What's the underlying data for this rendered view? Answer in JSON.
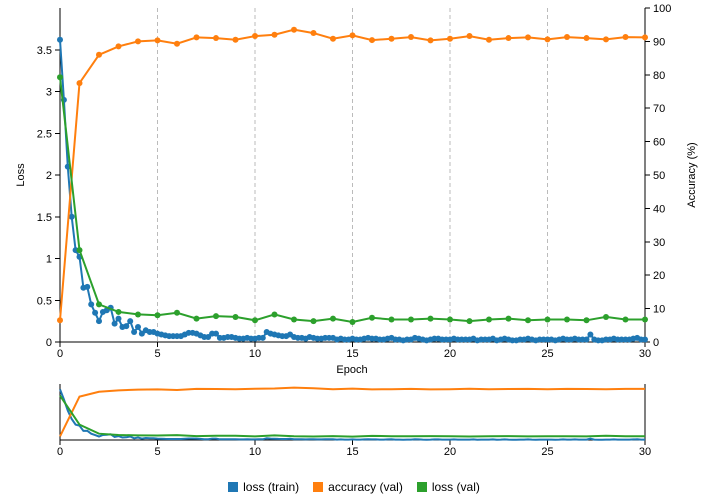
{
  "chart_data": {
    "type": "line",
    "xlabel": "Epoch",
    "ylabel": "Loss",
    "y2label": "Accuracy (%)",
    "xlim": [
      0,
      30
    ],
    "ylim": [
      0,
      4
    ],
    "y2lim": [
      0,
      100
    ],
    "x_ticks": [
      0,
      5,
      10,
      15,
      20,
      25,
      30
    ],
    "y_ticks": [
      0,
      0.5,
      1,
      1.5,
      2,
      2.5,
      3,
      3.5
    ],
    "y2_ticks": [
      0,
      10,
      20,
      30,
      40,
      50,
      60,
      70,
      80,
      90,
      100
    ],
    "vertical_grid": [
      5,
      10,
      15,
      20,
      25,
      30
    ],
    "legend_position": "bottom-center",
    "series": [
      {
        "name": "loss (train)",
        "color": "#1f77b4",
        "axis": "left",
        "x": [
          0,
          0.2,
          0.4,
          0.6,
          0.8,
          1,
          1.2,
          1.4,
          1.6,
          1.8,
          2,
          2.2,
          2.4,
          2.6,
          2.8,
          3,
          3.2,
          3.4,
          3.6,
          3.8,
          4,
          4.2,
          4.4,
          4.6,
          4.8,
          5,
          5.2,
          5.4,
          5.6,
          5.8,
          6,
          6.2,
          6.4,
          6.6,
          6.8,
          7,
          7.2,
          7.4,
          7.6,
          7.8,
          8,
          8.2,
          8.4,
          8.6,
          8.8,
          9,
          9.2,
          9.4,
          9.6,
          9.8,
          10,
          10.2,
          10.4,
          10.6,
          10.8,
          11,
          11.2,
          11.4,
          11.6,
          11.8,
          12,
          12.2,
          12.4,
          12.6,
          12.8,
          13,
          13.2,
          13.4,
          13.6,
          13.8,
          14,
          14.2,
          14.4,
          14.6,
          14.8,
          15,
          15.2,
          15.4,
          15.6,
          15.8,
          16,
          16.2,
          16.4,
          16.6,
          16.8,
          17,
          17.2,
          17.4,
          17.6,
          17.8,
          18,
          18.2,
          18.4,
          18.6,
          18.8,
          19,
          19.2,
          19.4,
          19.6,
          19.8,
          20,
          20.2,
          20.4,
          20.6,
          20.8,
          21,
          21.2,
          21.4,
          21.6,
          21.8,
          22,
          22.2,
          22.4,
          22.6,
          22.8,
          23,
          23.2,
          23.4,
          23.6,
          23.8,
          24,
          24.2,
          24.4,
          24.6,
          24.8,
          25,
          25.2,
          25.4,
          25.6,
          25.8,
          26,
          26.2,
          26.4,
          26.6,
          26.8,
          27,
          27.2,
          27.4,
          27.6,
          27.8,
          28,
          28.2,
          28.4,
          28.6,
          28.8,
          29,
          29.2,
          29.4,
          29.6,
          29.8,
          30
        ],
        "values": [
          3.62,
          2.9,
          2.1,
          1.5,
          1.1,
          1.02,
          0.65,
          0.66,
          0.45,
          0.35,
          0.25,
          0.36,
          0.38,
          0.41,
          0.22,
          0.28,
          0.18,
          0.19,
          0.25,
          0.12,
          0.18,
          0.1,
          0.14,
          0.12,
          0.12,
          0.1,
          0.09,
          0.08,
          0.07,
          0.07,
          0.07,
          0.07,
          0.09,
          0.11,
          0.11,
          0.1,
          0.08,
          0.06,
          0.06,
          0.1,
          0.1,
          0.05,
          0.05,
          0.06,
          0.06,
          0.05,
          0.04,
          0.04,
          0.05,
          0.04,
          0.04,
          0.05,
          0.05,
          0.12,
          0.1,
          0.09,
          0.08,
          0.07,
          0.07,
          0.09,
          0.06,
          0.05,
          0.05,
          0.04,
          0.06,
          0.05,
          0.04,
          0.04,
          0.05,
          0.05,
          0.05,
          0.03,
          0.04,
          0.03,
          0.03,
          0.04,
          0.03,
          0.03,
          0.04,
          0.05,
          0.04,
          0.04,
          0.03,
          0.03,
          0.04,
          0.05,
          0.03,
          0.03,
          0.02,
          0.03,
          0.03,
          0.05,
          0.04,
          0.03,
          0.02,
          0.03,
          0.04,
          0.04,
          0.03,
          0.03,
          0.03,
          0.04,
          0.03,
          0.03,
          0.03,
          0.03,
          0.04,
          0.02,
          0.03,
          0.03,
          0.03,
          0.04,
          0.02,
          0.03,
          0.04,
          0.03,
          0.02,
          0.02,
          0.03,
          0.03,
          0.04,
          0.03,
          0.02,
          0.03,
          0.03,
          0.03,
          0.03,
          0.02,
          0.03,
          0.04,
          0.03,
          0.03,
          0.04,
          0.03,
          0.03,
          0.03,
          0.09,
          0.03,
          0.02,
          0.02,
          0.03,
          0.03,
          0.04,
          0.03,
          0.03,
          0.03,
          0.03,
          0.04,
          0.05,
          0.03,
          0.03
        ]
      },
      {
        "name": "accuracy (val)",
        "color": "#ff7f0e",
        "axis": "right",
        "x": [
          0,
          1,
          2,
          3,
          4,
          5,
          6,
          7,
          8,
          9,
          10,
          11,
          12,
          13,
          14,
          15,
          16,
          17,
          18,
          19,
          20,
          21,
          22,
          23,
          24,
          25,
          26,
          27,
          28,
          29,
          30
        ],
        "values": [
          6.5,
          77.5,
          86.0,
          88.5,
          90.0,
          90.3,
          89.3,
          91.2,
          91.0,
          90.5,
          91.6,
          92.0,
          93.5,
          92.5,
          90.8,
          91.8,
          90.4,
          90.8,
          91.3,
          90.3,
          90.8,
          91.6,
          90.5,
          91.0,
          91.2,
          90.6,
          91.3,
          91.0,
          90.6,
          91.3,
          91.2
        ]
      },
      {
        "name": "loss (val)",
        "color": "#2ca02c",
        "axis": "left",
        "x": [
          0,
          1,
          2,
          3,
          4,
          5,
          6,
          7,
          8,
          9,
          10,
          11,
          12,
          13,
          14,
          15,
          16,
          17,
          18,
          19,
          20,
          21,
          22,
          23,
          24,
          25,
          26,
          27,
          28,
          29,
          30
        ],
        "values": [
          3.17,
          1.1,
          0.45,
          0.36,
          0.33,
          0.32,
          0.35,
          0.28,
          0.31,
          0.3,
          0.26,
          0.33,
          0.27,
          0.25,
          0.28,
          0.24,
          0.29,
          0.27,
          0.27,
          0.28,
          0.27,
          0.25,
          0.27,
          0.28,
          0.26,
          0.27,
          0.27,
          0.26,
          0.3,
          0.27,
          0.27
        ]
      }
    ],
    "overview": {
      "x_ticks": [
        0,
        5,
        10,
        15,
        20,
        25,
        30
      ]
    }
  }
}
